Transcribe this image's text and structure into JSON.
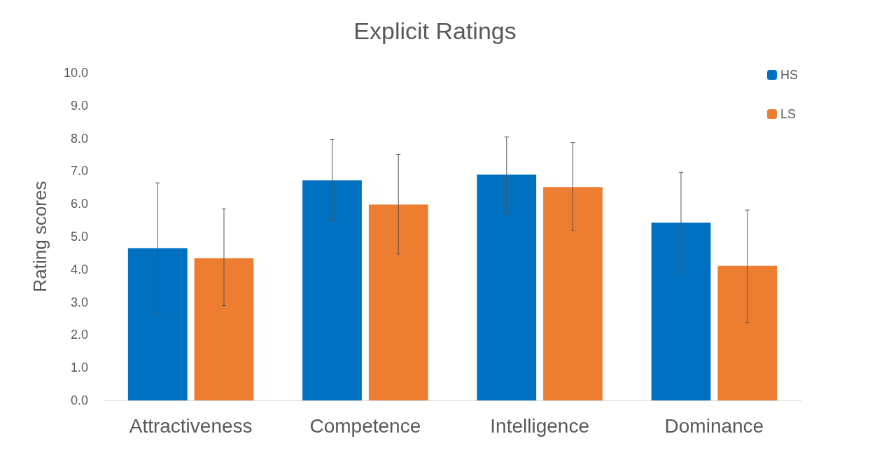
{
  "chart_data": {
    "type": "bar",
    "title": "Explicit Ratings",
    "ylabel": "Rating scores",
    "categories": [
      "Attractiveness",
      "Competence",
      "Intelligence",
      "Dominance"
    ],
    "series": [
      {
        "name": "HS",
        "color": "#0070c0",
        "values": [
          4.65,
          6.72,
          6.89,
          5.43
        ],
        "errors": [
          [
            2.64,
            6.64
          ],
          [
            5.49,
            7.96
          ],
          [
            5.7,
            8.04
          ],
          [
            3.91,
            6.96
          ]
        ]
      },
      {
        "name": "LS",
        "color": "#ed7d31",
        "values": [
          4.34,
          5.98,
          6.51,
          4.11
        ],
        "errors": [
          [
            2.89,
            5.85
          ],
          [
            4.47,
            7.51
          ],
          [
            5.19,
            7.87
          ],
          [
            2.38,
            5.81
          ]
        ]
      }
    ],
    "ylim": [
      0,
      10
    ],
    "yticks": [
      {
        "value": 0,
        "label": "0.0"
      },
      {
        "value": 1,
        "label": "1.0"
      },
      {
        "value": 2,
        "label": "2.0"
      },
      {
        "value": 3,
        "label": "3.0"
      },
      {
        "value": 4,
        "label": "4.0"
      },
      {
        "value": 5,
        "label": "5.0"
      },
      {
        "value": 6,
        "label": "6.0"
      },
      {
        "value": 7,
        "label": "7.0"
      },
      {
        "value": 8,
        "label": "8.0"
      },
      {
        "value": 9,
        "label": "9.0"
      },
      {
        "value": 10,
        "label": "10.0"
      }
    ],
    "grid": false,
    "legend": "top right"
  }
}
